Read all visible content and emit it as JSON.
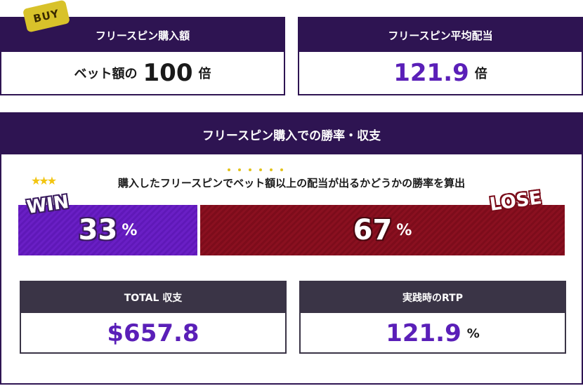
{
  "buy_panel": {
    "badge": "BUY",
    "title": "フリースピン購入額",
    "prefix": "ベット額の",
    "value": "100",
    "unit": "倍"
  },
  "avg_panel": {
    "title": "フリースピン平均配当",
    "value": "121.9",
    "unit": "倍"
  },
  "rate_panel": {
    "title": "フリースピン購入での勝率・収支",
    "description": "購入したフリースピンでベット額以上の配当が出るかどうかの勝率を算出",
    "stars": "★★★",
    "win_label": "WIN",
    "lose_label": "LOSE",
    "win_value": "33",
    "win_unit": "%",
    "lose_value": "67",
    "lose_unit": "%",
    "win_rate": 0.33
  },
  "total_panel": {
    "title": "TOTAL 収支",
    "value": "$657.8"
  },
  "rtp_panel": {
    "title": "実践時のRTP",
    "value": "121.9",
    "unit": "%"
  },
  "colors": {
    "header": "#2e1452",
    "win": "#6a1fc5",
    "lose": "#8a1020",
    "accent": "#5a1fb8",
    "badge": "#d8c22a"
  }
}
